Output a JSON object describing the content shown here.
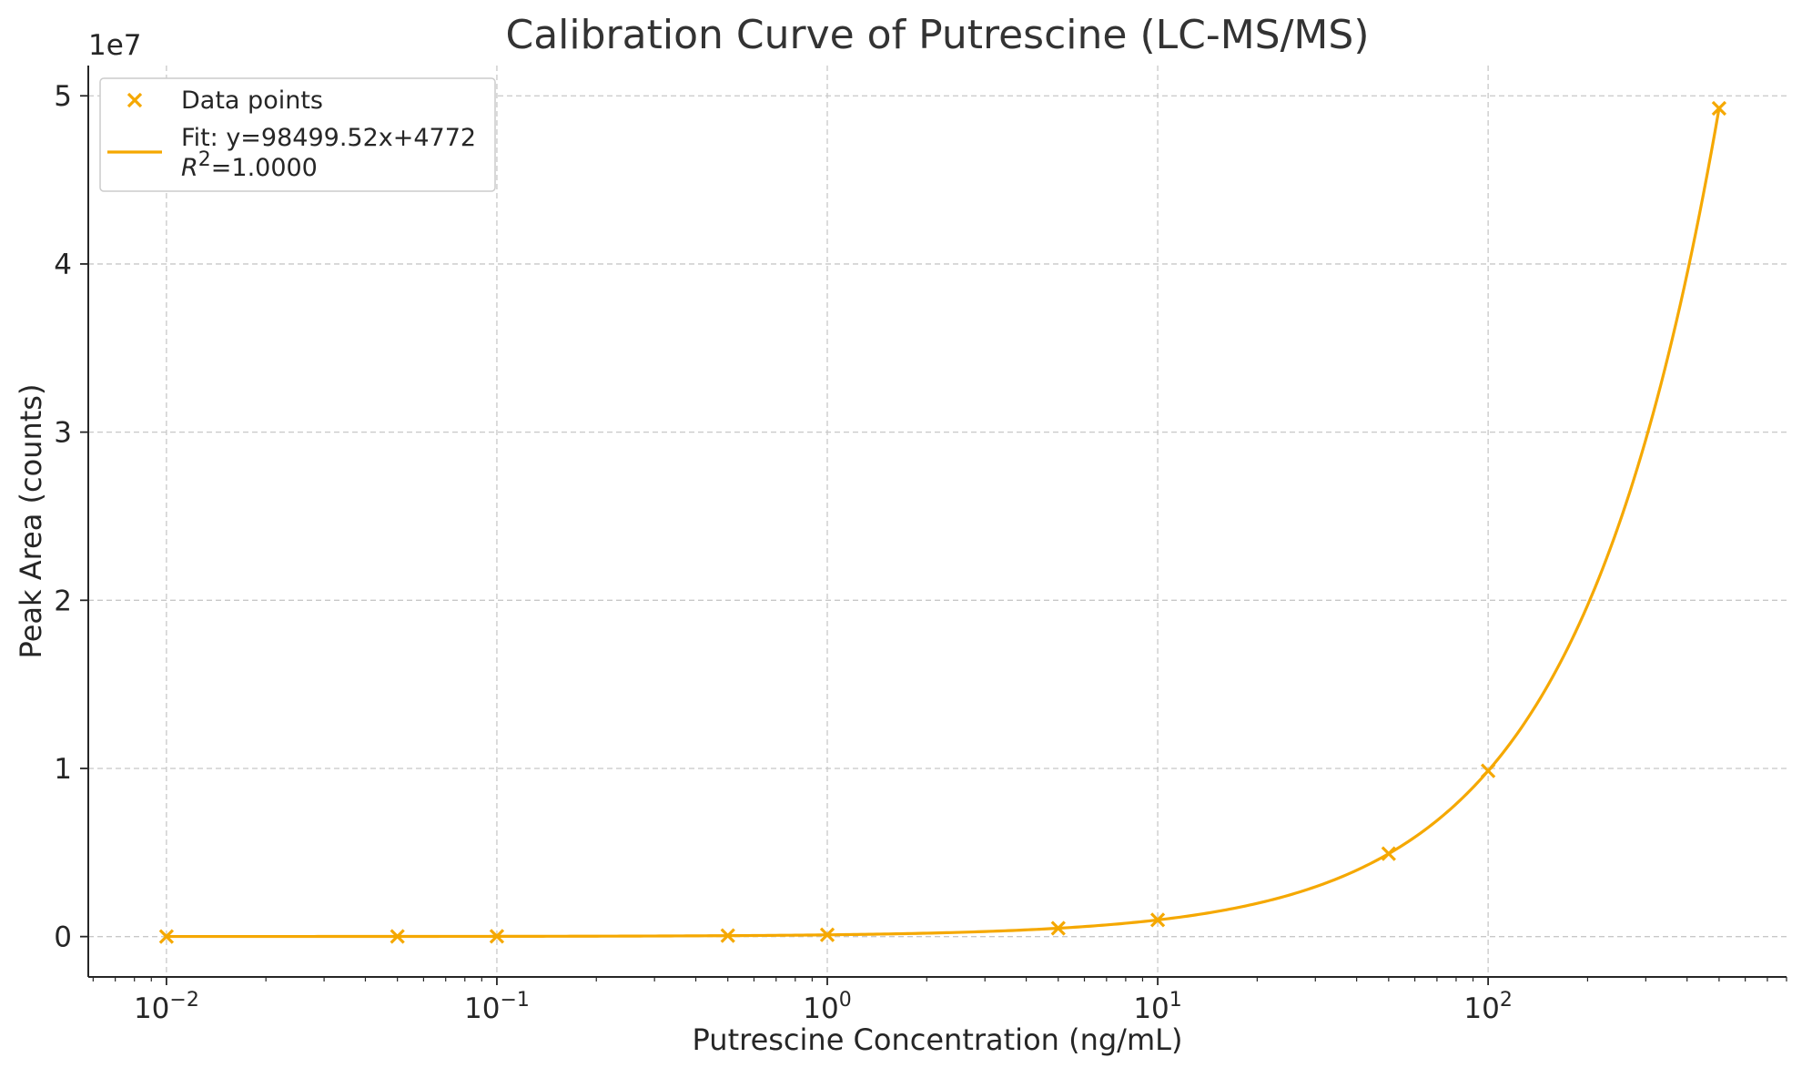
{
  "chart_data": {
    "type": "scatter",
    "title": "Calibration Curve of Putrescine (LC-MS/MS)",
    "xlabel": "Putrescine Concentration (ng/mL)",
    "ylabel": "Peak Area (counts)",
    "x_scale": "log",
    "xlim": [
      0.0058,
      800
    ],
    "ylim": [
      -2400000,
      51800000
    ],
    "y_offset_label": "1e7",
    "y_tick_divisor": 10000000,
    "x_ticks": [
      {
        "value": 0.01,
        "base": "10",
        "exp": "−2"
      },
      {
        "value": 0.1,
        "base": "10",
        "exp": "−1"
      },
      {
        "value": 1,
        "base": "10",
        "exp": "0"
      },
      {
        "value": 10,
        "base": "10",
        "exp": "1"
      },
      {
        "value": 100,
        "base": "10",
        "exp": "2"
      }
    ],
    "y_ticks": [
      0,
      10000000,
      20000000,
      30000000,
      40000000,
      50000000
    ],
    "grid": true,
    "legend_position": "top-left",
    "series": [
      {
        "name": "Data points",
        "kind": "scatter",
        "marker": "x",
        "color": "#F5A800",
        "x": [
          0.01,
          0.05,
          0.1,
          0.5,
          1,
          5,
          10,
          50,
          100,
          500
        ],
        "y": [
          5757,
          9697,
          14622,
          54022,
          103272,
          497270,
          989767,
          4929748,
          9854724,
          49254512
        ]
      },
      {
        "name": "Fit: y=98499.52x+4772",
        "name_line2": "=1.0000",
        "name_line2_prefix": "R",
        "name_line2_sup": "2",
        "kind": "line",
        "color": "#F5A800",
        "slope": 98499.52,
        "intercept": 4772,
        "x_range": [
          0.01,
          500
        ]
      }
    ]
  }
}
